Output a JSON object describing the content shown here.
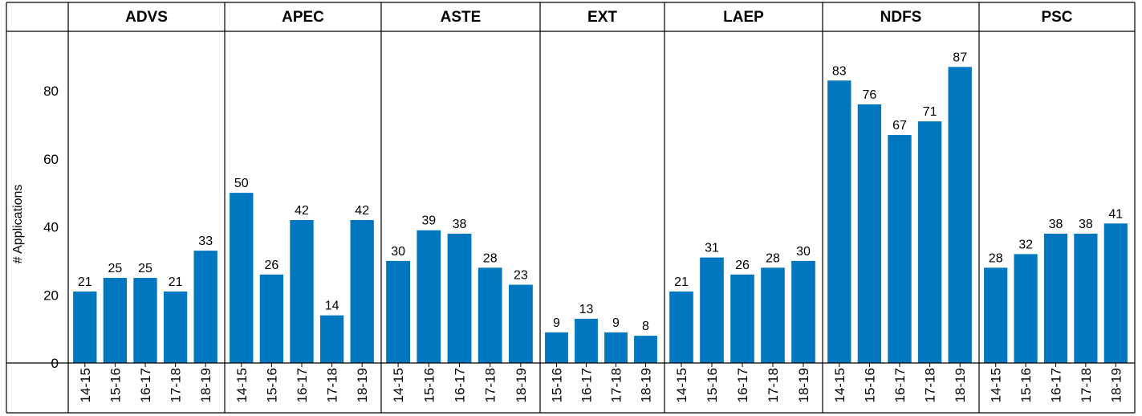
{
  "chart_data": {
    "type": "bar",
    "ylabel": "# Applications",
    "ylim": [
      0,
      95
    ],
    "yticks": [
      0,
      20,
      40,
      60,
      80
    ],
    "grid": false,
    "bar_color": "#0077BE",
    "panels": [
      {
        "name": "ADVS",
        "categories": [
          "14-15",
          "15-16",
          "16-17",
          "17-18",
          "18-19"
        ],
        "values": [
          21,
          25,
          25,
          21,
          33
        ]
      },
      {
        "name": "APEC",
        "categories": [
          "14-15",
          "15-16",
          "16-17",
          "17-18",
          "18-19"
        ],
        "values": [
          50,
          26,
          42,
          14,
          42
        ]
      },
      {
        "name": "ASTE",
        "categories": [
          "14-15",
          "15-16",
          "16-17",
          "17-18",
          "18-19"
        ],
        "values": [
          30,
          39,
          38,
          28,
          23
        ]
      },
      {
        "name": "EXT",
        "categories": [
          "15-16",
          "16-17",
          "17-18",
          "18-19"
        ],
        "values": [
          9,
          13,
          9,
          8
        ]
      },
      {
        "name": "LAEP",
        "categories": [
          "14-15",
          "15-16",
          "16-17",
          "17-18",
          "18-19"
        ],
        "values": [
          21,
          31,
          26,
          28,
          30
        ]
      },
      {
        "name": "NDFS",
        "categories": [
          "14-15",
          "15-16",
          "16-17",
          "17-18",
          "18-19"
        ],
        "values": [
          83,
          76,
          67,
          71,
          87
        ]
      },
      {
        "name": "PSC",
        "categories": [
          "14-15",
          "15-16",
          "16-17",
          "17-18",
          "18-19"
        ],
        "values": [
          28,
          32,
          38,
          38,
          41
        ]
      }
    ]
  }
}
